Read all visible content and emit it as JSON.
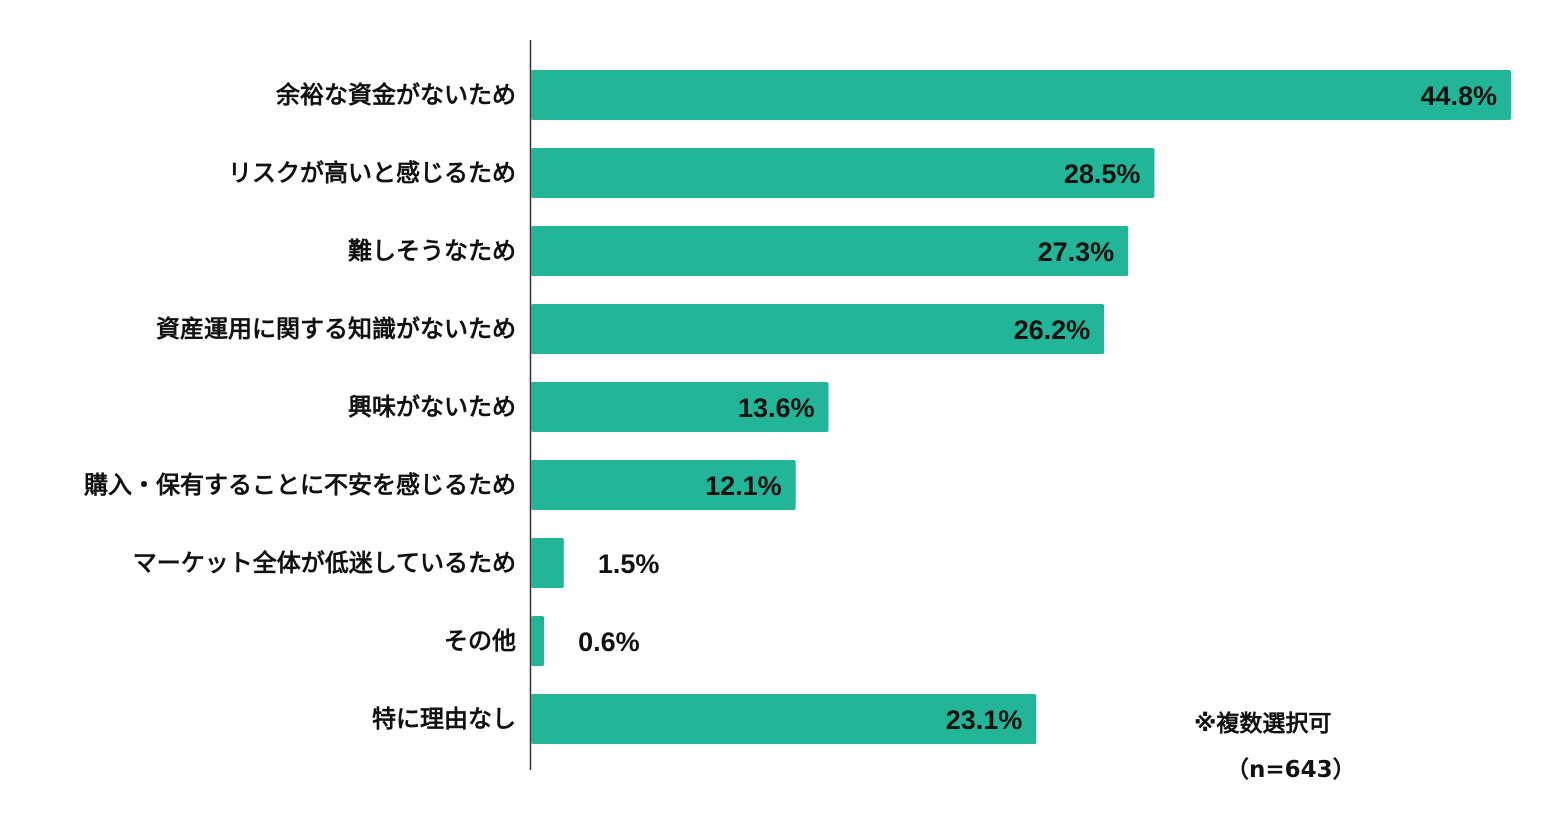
{
  "chart_data": {
    "type": "bar",
    "orientation": "horizontal",
    "categories": [
      "余裕な資金がないため",
      "リスクが高いと感じるため",
      "難しそうなため",
      "資産運用に関する知識がないため",
      "興味がないため",
      "購入・保有することに不安を感じるため",
      "マーケット全体が低迷しているため",
      "その他",
      "特に理由なし"
    ],
    "values": [
      44.8,
      28.5,
      27.3,
      26.2,
      13.6,
      12.1,
      1.5,
      0.6,
      23.1
    ],
    "value_labels": [
      "44.8%",
      "28.5%",
      "27.3%",
      "26.2%",
      "13.6%",
      "12.1%",
      "1.5%",
      "0.6%",
      "23.1%"
    ],
    "unit": "%",
    "bar_color": "#22B598",
    "xlim": [
      0,
      45
    ],
    "grid": false,
    "notes": [
      "※複数選択可",
      "（n=643）"
    ]
  }
}
